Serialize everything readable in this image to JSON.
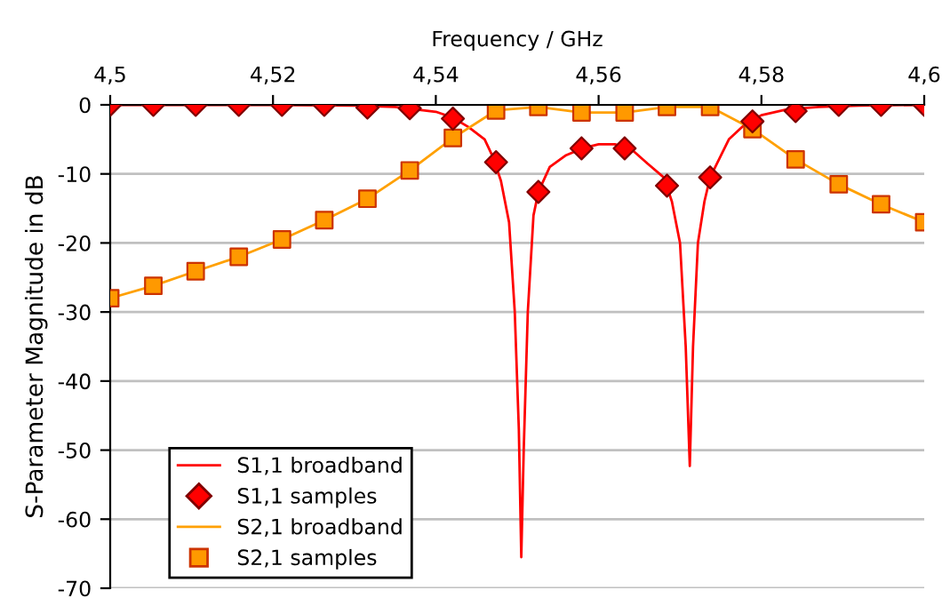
{
  "chart_data": {
    "type": "line",
    "xlabel": "Frequency / GHz",
    "ylabel": "S-Parameter Magnitude in dB",
    "xlim": [
      4.5,
      4.6
    ],
    "ylim": [
      -70,
      0
    ],
    "xticks": [
      {
        "value": 4.5,
        "label": "4,5"
      },
      {
        "value": 4.52,
        "label": "4,52"
      },
      {
        "value": 4.54,
        "label": "4,54"
      },
      {
        "value": 4.56,
        "label": "4,56"
      },
      {
        "value": 4.58,
        "label": "4,58"
      },
      {
        "value": 4.6,
        "label": "4,6"
      }
    ],
    "yticks": [
      0,
      -10,
      -20,
      -30,
      -40,
      -50,
      -60,
      -70
    ],
    "grid": "y",
    "legend": "bottom left",
    "series": [
      {
        "name": "S1,1 broadband",
        "color": "#ff0000",
        "marker": "none",
        "x": [
          4.5,
          4.52,
          4.53,
          4.535,
          4.54,
          4.542,
          4.544,
          4.546,
          4.547,
          4.548,
          4.549,
          4.5497,
          4.5502,
          4.5505,
          4.5508,
          4.5513,
          4.552,
          4.5526,
          4.554,
          4.556,
          4.558,
          4.56,
          4.562,
          4.564,
          4.566,
          4.568,
          4.569,
          4.57,
          4.5707,
          4.5712,
          4.5716,
          4.5722,
          4.573,
          4.5737,
          4.576,
          4.578,
          4.58,
          4.583,
          4.587,
          4.592,
          4.6
        ],
        "values": [
          0,
          0,
          -0.1,
          -0.3,
          -1.0,
          -1.8,
          -3.2,
          -5,
          -7.5,
          -11,
          -17,
          -30,
          -47,
          -65.5,
          -50,
          -30,
          -16,
          -12.6,
          -9,
          -7.3,
          -6.3,
          -5.7,
          -5.7,
          -6.4,
          -8.5,
          -10.5,
          -14,
          -20,
          -35,
          -52.3,
          -35,
          -20,
          -14,
          -10.5,
          -5,
          -2.8,
          -1.5,
          -0.7,
          -0.3,
          -0.1,
          0
        ]
      },
      {
        "name": "S1,1 samples",
        "type": "scatter",
        "color": "#ff0000",
        "marker": "diamond",
        "x": [
          4.5,
          4.5053,
          4.5105,
          4.5158,
          4.5211,
          4.5263,
          4.5316,
          4.5368,
          4.5421,
          4.5474,
          4.5526,
          4.5579,
          4.5632,
          4.5684,
          4.5737,
          4.5789,
          4.5842,
          4.5895,
          4.5947,
          4.6
        ],
        "values": [
          0,
          0,
          0,
          0,
          0,
          0,
          -0.4,
          -0.5,
          -2.0,
          -8.3,
          -12.6,
          -6.3,
          -6.3,
          -11.7,
          -10.5,
          -2.4,
          -0.9,
          0,
          0,
          0
        ]
      },
      {
        "name": "S2,1 broadband",
        "color": "#ffa000",
        "marker": "none",
        "x": [
          4.5,
          4.5053,
          4.5105,
          4.5158,
          4.5211,
          4.5263,
          4.5316,
          4.5368,
          4.5421,
          4.5474,
          4.5526,
          4.5579,
          4.5632,
          4.5684,
          4.5737,
          4.5789,
          4.5842,
          4.5895,
          4.5947,
          4.6
        ],
        "values": [
          -28.0,
          -26.2,
          -24.1,
          -22.0,
          -19.5,
          -16.7,
          -13.6,
          -9.5,
          -4.8,
          -0.8,
          -0.3,
          -1.1,
          -1.1,
          -0.3,
          -0.3,
          -3.5,
          -7.9,
          -11.5,
          -14.4,
          -17.0
        ]
      },
      {
        "name": "S2,1 samples",
        "type": "scatter",
        "color": "#ff9900",
        "marker": "square",
        "x": [
          4.5,
          4.5053,
          4.5105,
          4.5158,
          4.5211,
          4.5263,
          4.5316,
          4.5368,
          4.5421,
          4.5474,
          4.5526,
          4.5579,
          4.5632,
          4.5684,
          4.5737,
          4.5789,
          4.5842,
          4.5895,
          4.5947,
          4.6
        ],
        "values": [
          -28.0,
          -26.2,
          -24.1,
          -22.0,
          -19.5,
          -16.7,
          -13.6,
          -9.5,
          -4.8,
          -0.8,
          -0.3,
          -1.1,
          -1.1,
          -0.3,
          -0.3,
          -3.5,
          -7.9,
          -11.5,
          -14.4,
          -17.0
        ]
      }
    ]
  }
}
